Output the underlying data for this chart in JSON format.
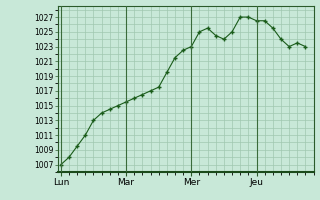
{
  "background_color": "#c8e8d8",
  "plot_bg_color": "#c8e8d8",
  "grid_color": "#a0c8b0",
  "line_color": "#1a5c1a",
  "marker_color": "#1a5c1a",
  "ylim": [
    1006,
    1028.5
  ],
  "yticks": [
    1007,
    1009,
    1011,
    1013,
    1015,
    1017,
    1019,
    1021,
    1023,
    1025,
    1027
  ],
  "xtick_labels": [
    "Lun",
    "Mar",
    "Mer",
    "Jeu"
  ],
  "x_values": [
    0,
    0.5,
    1,
    1.5,
    2,
    2.5,
    3,
    3.5,
    4,
    4.5,
    5,
    5.5,
    6,
    6.5,
    7,
    7.5,
    8,
    8.5,
    9,
    9.5,
    10,
    10.5,
    11,
    11.5,
    12,
    12.5,
    13,
    13.5,
    14,
    14.5,
    15
  ],
  "y_values": [
    1007,
    1008,
    1009.5,
    1011,
    1013,
    1014,
    1014.5,
    1015,
    1015.5,
    1016,
    1016.5,
    1017,
    1017.5,
    1019.5,
    1021.5,
    1022.5,
    1023,
    1025,
    1025.5,
    1024.5,
    1024,
    1025,
    1027,
    1027,
    1026.5,
    1026.5,
    1025.5,
    1024,
    1023,
    1023.5,
    1023
  ],
  "xtick_positions": [
    0,
    4,
    8,
    12
  ],
  "major_vlines": [
    0,
    4,
    8,
    12
  ],
  "xlim": [
    -0.2,
    15.5
  ],
  "ytick_fontsize": 5.5,
  "xtick_fontsize": 6.5
}
